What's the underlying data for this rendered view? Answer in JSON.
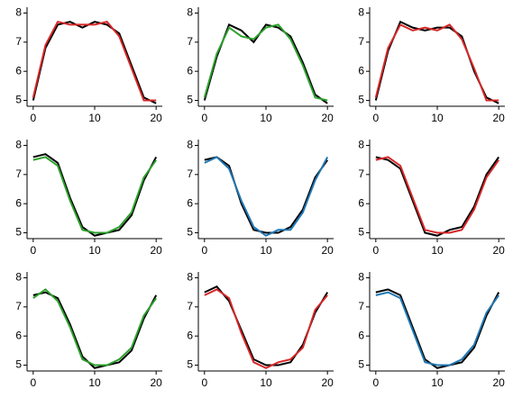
{
  "chart_data": [
    {
      "type": "line",
      "x": [
        0,
        2,
        4,
        6,
        8,
        10,
        12,
        14,
        16,
        18,
        20
      ],
      "xlim": [
        -1,
        21
      ],
      "xticks": [
        0,
        10,
        20
      ],
      "ylim": [
        4.8,
        8.2
      ],
      "yticks": [
        5,
        6,
        7,
        8
      ],
      "series": [
        {
          "color": "#000000",
          "values": [
            5.0,
            6.8,
            7.6,
            7.7,
            7.5,
            7.7,
            7.6,
            7.3,
            6.2,
            5.1,
            4.9
          ]
        },
        {
          "color": "#d62728",
          "values": [
            5.1,
            6.9,
            7.7,
            7.6,
            7.6,
            7.6,
            7.7,
            7.2,
            6.1,
            5.0,
            5.0
          ]
        }
      ]
    },
    {
      "type": "line",
      "x": [
        0,
        2,
        4,
        6,
        8,
        10,
        12,
        14,
        16,
        18,
        20
      ],
      "xlim": [
        -1,
        21
      ],
      "xticks": [
        0,
        10,
        20
      ],
      "ylim": [
        4.8,
        8.2
      ],
      "yticks": [
        5,
        6,
        7,
        8
      ],
      "series": [
        {
          "color": "#000000",
          "values": [
            5.0,
            6.5,
            7.6,
            7.4,
            7.0,
            7.6,
            7.5,
            7.2,
            6.3,
            5.2,
            4.9
          ]
        },
        {
          "color": "#2ca02c",
          "values": [
            5.1,
            6.6,
            7.5,
            7.2,
            7.1,
            7.5,
            7.6,
            7.1,
            6.2,
            5.1,
            5.0
          ]
        }
      ]
    },
    {
      "type": "line",
      "x": [
        0,
        2,
        4,
        6,
        8,
        10,
        12,
        14,
        16,
        18,
        20
      ],
      "xlim": [
        -1,
        21
      ],
      "xticks": [
        0,
        10,
        20
      ],
      "ylim": [
        4.8,
        8.2
      ],
      "yticks": [
        5,
        6,
        7,
        8
      ],
      "series": [
        {
          "color": "#000000",
          "values": [
            5.0,
            6.7,
            7.7,
            7.5,
            7.4,
            7.5,
            7.5,
            7.2,
            6.0,
            5.1,
            4.9
          ]
        },
        {
          "color": "#d62728",
          "values": [
            5.1,
            6.8,
            7.6,
            7.4,
            7.5,
            7.4,
            7.6,
            7.1,
            6.1,
            5.0,
            5.0
          ]
        }
      ]
    },
    {
      "type": "line",
      "x": [
        0,
        2,
        4,
        6,
        8,
        10,
        12,
        14,
        16,
        18,
        20
      ],
      "xlim": [
        -1,
        21
      ],
      "xticks": [
        0,
        10,
        20
      ],
      "ylim": [
        4.8,
        8.2
      ],
      "yticks": [
        5,
        6,
        7,
        8
      ],
      "series": [
        {
          "color": "#000000",
          "values": [
            7.6,
            7.7,
            7.4,
            6.2,
            5.2,
            4.9,
            5.0,
            5.1,
            5.6,
            6.8,
            7.6
          ]
        },
        {
          "color": "#2ca02c",
          "values": [
            7.5,
            7.6,
            7.3,
            6.1,
            5.1,
            5.0,
            5.0,
            5.2,
            5.7,
            6.9,
            7.5
          ]
        }
      ]
    },
    {
      "type": "line",
      "x": [
        0,
        2,
        4,
        6,
        8,
        10,
        12,
        14,
        16,
        18,
        20
      ],
      "xlim": [
        -1,
        21
      ],
      "xticks": [
        0,
        10,
        20
      ],
      "ylim": [
        4.8,
        8.2
      ],
      "yticks": [
        5,
        6,
        7,
        8
      ],
      "series": [
        {
          "color": "#000000",
          "values": [
            7.5,
            7.6,
            7.3,
            6.0,
            5.1,
            5.0,
            5.0,
            5.2,
            5.8,
            6.9,
            7.5
          ]
        },
        {
          "color": "#1f77b4",
          "values": [
            7.4,
            7.6,
            7.2,
            6.1,
            5.2,
            4.9,
            5.1,
            5.1,
            5.7,
            6.8,
            7.6
          ]
        }
      ]
    },
    {
      "type": "line",
      "x": [
        0,
        2,
        4,
        6,
        8,
        10,
        12,
        14,
        16,
        18,
        20
      ],
      "xlim": [
        -1,
        21
      ],
      "xticks": [
        0,
        10,
        20
      ],
      "ylim": [
        4.8,
        8.2
      ],
      "yticks": [
        5,
        6,
        7,
        8
      ],
      "series": [
        {
          "color": "#000000",
          "values": [
            7.6,
            7.5,
            7.2,
            6.1,
            5.0,
            4.9,
            5.1,
            5.2,
            5.9,
            7.0,
            7.6
          ]
        },
        {
          "color": "#d62728",
          "values": [
            7.5,
            7.6,
            7.3,
            6.2,
            5.1,
            5.0,
            5.0,
            5.1,
            5.8,
            6.9,
            7.5
          ]
        }
      ]
    },
    {
      "type": "line",
      "x": [
        0,
        2,
        4,
        6,
        8,
        10,
        12,
        14,
        16,
        18,
        20
      ],
      "xlim": [
        -1,
        21
      ],
      "xticks": [
        0,
        10,
        20
      ],
      "ylim": [
        4.8,
        8.2
      ],
      "yticks": [
        5,
        6,
        7,
        8
      ],
      "series": [
        {
          "color": "#000000",
          "values": [
            7.4,
            7.5,
            7.3,
            6.4,
            5.3,
            4.9,
            5.0,
            5.1,
            5.5,
            6.6,
            7.4
          ]
        },
        {
          "color": "#2ca02c",
          "values": [
            7.3,
            7.6,
            7.2,
            6.3,
            5.2,
            5.0,
            5.0,
            5.2,
            5.6,
            6.7,
            7.3
          ]
        }
      ]
    },
    {
      "type": "line",
      "x": [
        0,
        2,
        4,
        6,
        8,
        10,
        12,
        14,
        16,
        18,
        20
      ],
      "xlim": [
        -1,
        21
      ],
      "xticks": [
        0,
        10,
        20
      ],
      "ylim": [
        4.8,
        8.2
      ],
      "yticks": [
        5,
        6,
        7,
        8
      ],
      "series": [
        {
          "color": "#000000",
          "values": [
            7.5,
            7.7,
            7.2,
            6.2,
            5.2,
            5.0,
            5.0,
            5.1,
            5.7,
            6.8,
            7.5
          ]
        },
        {
          "color": "#d62728",
          "values": [
            7.4,
            7.6,
            7.3,
            6.1,
            5.1,
            4.9,
            5.1,
            5.2,
            5.6,
            6.9,
            7.4
          ]
        }
      ]
    },
    {
      "type": "line",
      "x": [
        0,
        2,
        4,
        6,
        8,
        10,
        12,
        14,
        16,
        18,
        20
      ],
      "xlim": [
        -1,
        21
      ],
      "xticks": [
        0,
        10,
        20
      ],
      "ylim": [
        4.8,
        8.2
      ],
      "yticks": [
        5,
        6,
        7,
        8
      ],
      "series": [
        {
          "color": "#000000",
          "values": [
            7.5,
            7.6,
            7.4,
            6.3,
            5.2,
            4.9,
            5.0,
            5.1,
            5.6,
            6.7,
            7.5
          ]
        },
        {
          "color": "#1f77b4",
          "values": [
            7.4,
            7.5,
            7.3,
            6.2,
            5.1,
            5.0,
            5.0,
            5.2,
            5.7,
            6.8,
            7.4
          ]
        }
      ]
    }
  ]
}
